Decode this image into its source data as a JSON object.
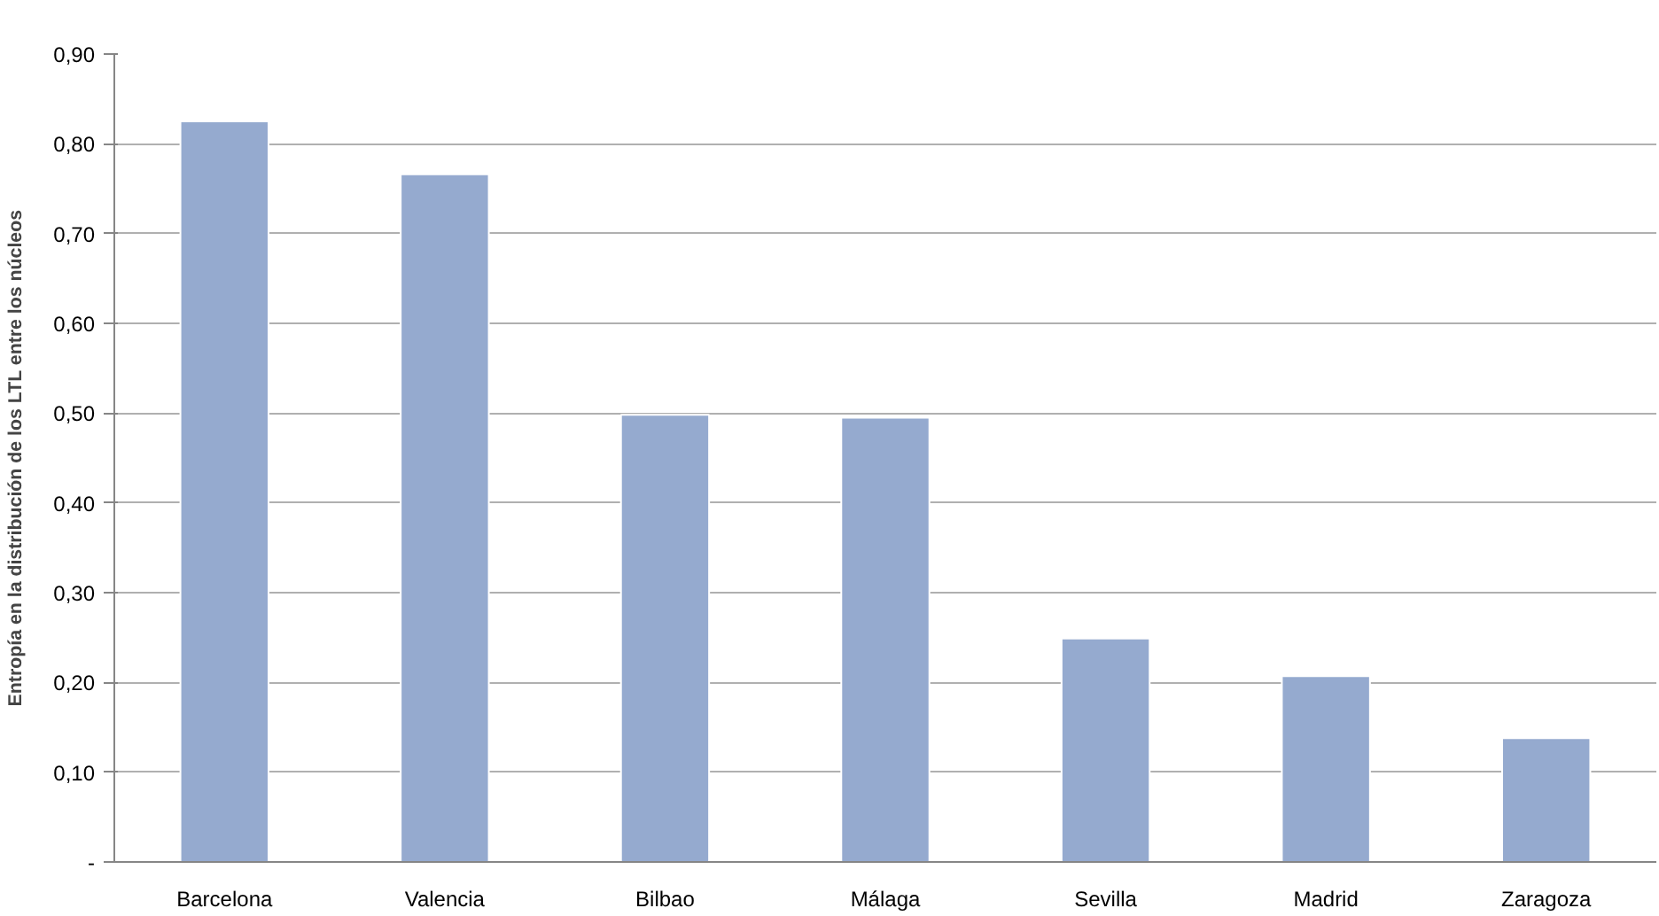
{
  "chart_data": {
    "type": "bar",
    "ylabel": "Entropía en la distribución de los LTL entre los núcleos",
    "categories": [
      "Barcelona",
      "Valencia",
      "Bilbao",
      "Málaga",
      "Sevilla",
      "Madrid",
      "Zaragoza"
    ],
    "values": [
      0.825,
      0.766,
      0.498,
      0.495,
      0.249,
      0.207,
      0.138
    ],
    "color": "#95aacf",
    "ylim": [
      0,
      0.9
    ],
    "yticks": [
      {
        "value": 0,
        "label": "-"
      },
      {
        "value": 0.1,
        "label": "0,10"
      },
      {
        "value": 0.2,
        "label": "0,20"
      },
      {
        "value": 0.3,
        "label": "0,30"
      },
      {
        "value": 0.4,
        "label": "0,40"
      },
      {
        "value": 0.5,
        "label": "0,50"
      },
      {
        "value": 0.6,
        "label": "0,60"
      },
      {
        "value": 0.7,
        "label": "0,70"
      },
      {
        "value": 0.8,
        "label": "0,80"
      },
      {
        "value": 0.9,
        "label": "0,90"
      }
    ],
    "grid": "y"
  }
}
